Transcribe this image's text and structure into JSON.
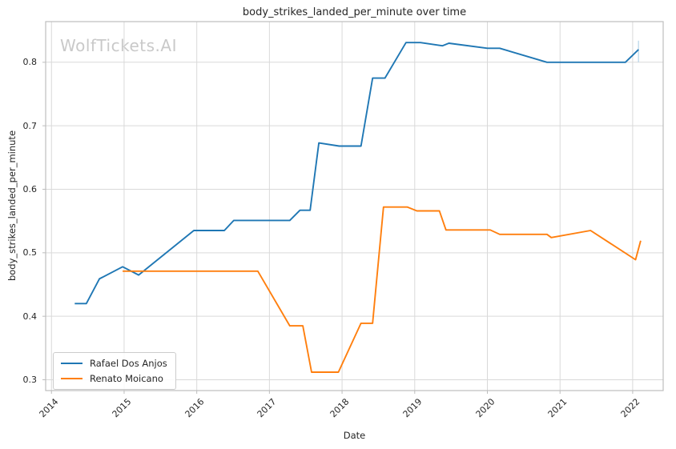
{
  "figure": {
    "title": "body_strikes_landed_per_minute over time",
    "watermark": "WolfTickets.AI",
    "xlabel": "Date",
    "ylabel": "body_strikes_landed_per_minute"
  },
  "legend": {
    "items": [
      {
        "label": "Rafael Dos Anjos",
        "color": "#1f77b4"
      },
      {
        "label": "Renato Moicano",
        "color": "#ff7f0e"
      }
    ]
  },
  "colors": {
    "grid": "#d9d9d9",
    "spine": "#bdbdbd",
    "watermark": "#c9c9c9",
    "text": "#262626",
    "accent_blue": "#1f77b4",
    "accent_orange": "#ff7f0e",
    "end_cap": "#b5d3e9"
  },
  "chart_data": {
    "type": "line",
    "title": "body_strikes_landed_per_minute over time",
    "xlabel": "Date",
    "ylabel": "body_strikes_landed_per_minute",
    "xlim": [
      2013.92,
      2022.42
    ],
    "ylim": [
      0.283,
      0.864
    ],
    "grid": true,
    "legend_position": "lower left",
    "x_ticks": [
      {
        "value": 2014,
        "label": "2014"
      },
      {
        "value": 2015,
        "label": "2015"
      },
      {
        "value": 2016,
        "label": "2016"
      },
      {
        "value": 2017,
        "label": "2017"
      },
      {
        "value": 2018,
        "label": "2018"
      },
      {
        "value": 2019,
        "label": "2019"
      },
      {
        "value": 2020,
        "label": "2020"
      },
      {
        "value": 2021,
        "label": "2021"
      },
      {
        "value": 2022,
        "label": "2022"
      }
    ],
    "y_ticks": [
      {
        "value": 0.3,
        "label": "0.3"
      },
      {
        "value": 0.4,
        "label": "0.4"
      },
      {
        "value": 0.5,
        "label": "0.5"
      },
      {
        "value": 0.6,
        "label": "0.6"
      },
      {
        "value": 0.7,
        "label": "0.7"
      },
      {
        "value": 0.8,
        "label": "0.8"
      }
    ],
    "series": [
      {
        "name": "Rafael Dos Anjos",
        "color": "#1f77b4",
        "points": [
          [
            2014.32,
            0.42
          ],
          [
            2014.48,
            0.42
          ],
          [
            2014.66,
            0.459
          ],
          [
            2014.98,
            0.478
          ],
          [
            2015.2,
            0.465
          ],
          [
            2015.96,
            0.535
          ],
          [
            2016.38,
            0.535
          ],
          [
            2016.51,
            0.551
          ],
          [
            2017.28,
            0.551
          ],
          [
            2017.42,
            0.567
          ],
          [
            2017.56,
            0.567
          ],
          [
            2017.68,
            0.673
          ],
          [
            2017.96,
            0.668
          ],
          [
            2018.26,
            0.668
          ],
          [
            2018.42,
            0.775
          ],
          [
            2018.59,
            0.775
          ],
          [
            2018.88,
            0.831
          ],
          [
            2019.08,
            0.831
          ],
          [
            2019.38,
            0.826
          ],
          [
            2019.47,
            0.83
          ],
          [
            2020.0,
            0.822
          ],
          [
            2020.17,
            0.822
          ],
          [
            2020.82,
            0.8
          ],
          [
            2021.9,
            0.8
          ],
          [
            2022.08,
            0.82
          ]
        ]
      },
      {
        "name": "Renato Moicano",
        "color": "#ff7f0e",
        "points": [
          [
            2014.98,
            0.471
          ],
          [
            2016.84,
            0.471
          ],
          [
            2017.28,
            0.385
          ],
          [
            2017.46,
            0.385
          ],
          [
            2017.58,
            0.312
          ],
          [
            2017.95,
            0.312
          ],
          [
            2018.26,
            0.389
          ],
          [
            2018.42,
            0.389
          ],
          [
            2018.57,
            0.572
          ],
          [
            2018.9,
            0.572
          ],
          [
            2019.03,
            0.566
          ],
          [
            2019.34,
            0.566
          ],
          [
            2019.43,
            0.536
          ],
          [
            2020.04,
            0.536
          ],
          [
            2020.17,
            0.529
          ],
          [
            2020.82,
            0.529
          ],
          [
            2020.88,
            0.524
          ],
          [
            2021.42,
            0.535
          ],
          [
            2022.04,
            0.489
          ],
          [
            2022.11,
            0.519
          ]
        ]
      }
    ],
    "annotations": [
      {
        "type": "faint-vertical-end-cap",
        "x": 2022.08,
        "y_from": 0.8,
        "y_to": 0.834,
        "color": "#b5d3e9"
      }
    ]
  }
}
